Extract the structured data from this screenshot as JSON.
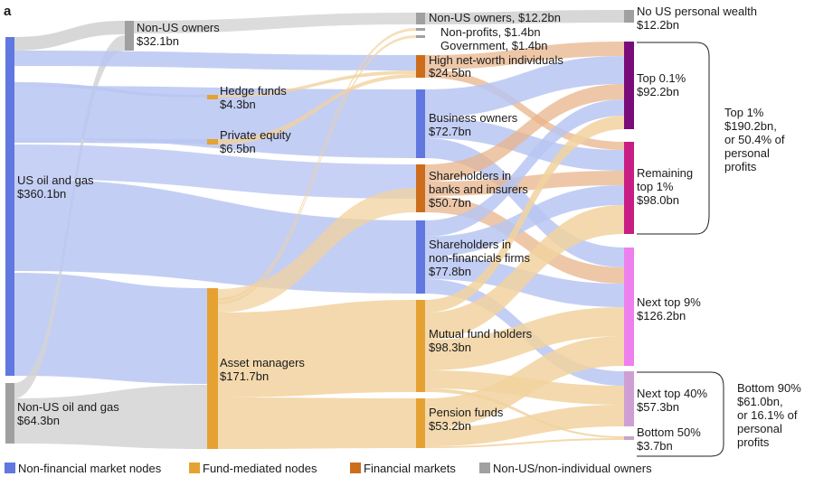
{
  "panel_letter": "a",
  "colors": {
    "non_financial": "#6078df",
    "fund_mediated": "#e5a232",
    "financial_market": "#cc6d1c",
    "non_us": "#a0a0a0",
    "top01": "#7a0b7a",
    "remaining_top1": "#c81d85",
    "next_top9": "#ee7fee",
    "next_top40": "#cf9fd3",
    "bottom50": "#c8a4cc",
    "flow_blue": "#b9c6f2",
    "flow_orange": "#f1d29f",
    "flow_grey": "#d3d3d3",
    "flow_copper": "#e8b48b"
  },
  "nodes": {
    "us_oil_gas": {
      "name": "US oil and gas",
      "value": "$360.1bn"
    },
    "non_us_oil_gas": {
      "name": "Non-US oil and gas",
      "value": "$64.3bn"
    },
    "non_us_owners_1": {
      "name": "Non-US owners",
      "value": "$32.1bn"
    },
    "hedge_funds": {
      "name": "Hedge funds",
      "value": "$4.3bn"
    },
    "private_equity": {
      "name": "Private equity",
      "value": "$6.5bn"
    },
    "asset_managers": {
      "name": "Asset managers",
      "value": "$171.7bn"
    },
    "non_us_owners_3": {
      "label": "Non-US owners, $12.2bn"
    },
    "non_profits": {
      "label": "Non-profits, $1.4bn"
    },
    "government": {
      "label": "Government, $1.4bn"
    },
    "hnwi": {
      "name": "High net-worth individuals",
      "value": "$24.5bn"
    },
    "business_owners": {
      "name": "Business owners",
      "value": "$72.7bn"
    },
    "shareholders_banks": {
      "line1": "Shareholders in",
      "line2": "banks and insurers",
      "value": "$50.7bn"
    },
    "shareholders_nonfin": {
      "line1": "Shareholders in",
      "line2": "non-financials firms",
      "value": "$77.8bn"
    },
    "mutual_fund": {
      "name": "Mutual fund holders",
      "value": "$98.3bn"
    },
    "pension_funds": {
      "name": "Pension funds",
      "value": "$53.2bn"
    },
    "no_us_wealth": {
      "name": "No US personal wealth",
      "value": "$12.2bn"
    },
    "top01": {
      "name": "Top 0.1%",
      "value": "$92.2bn"
    },
    "remaining_top1": {
      "line1": "Remaining",
      "line2": "top 1%",
      "value": "$98.0bn"
    },
    "next_top9": {
      "name": "Next top 9%",
      "value": "$126.2bn"
    },
    "next_top40": {
      "name": "Next top 40%",
      "value": "$57.3bn"
    },
    "bottom50": {
      "name": "Bottom 50%",
      "value": "$3.7bn"
    }
  },
  "brackets": {
    "top1": {
      "lines": [
        "Top 1%",
        "$190.2bn,",
        "or 50.4% of",
        "personal",
        "profits"
      ]
    },
    "bottom90": {
      "lines": [
        "Bottom 90%",
        "$61.0bn,",
        "or 16.1% of",
        "personal",
        "profits"
      ]
    }
  },
  "legend": [
    {
      "label": "Non-financial market nodes",
      "color": "#6078df"
    },
    {
      "label": "Fund-mediated nodes",
      "color": "#e5a232"
    },
    {
      "label": "Financial markets",
      "color": "#cc6d1c"
    },
    {
      "label": "Non-US/non-individual owners",
      "color": "#a0a0a0"
    }
  ]
}
